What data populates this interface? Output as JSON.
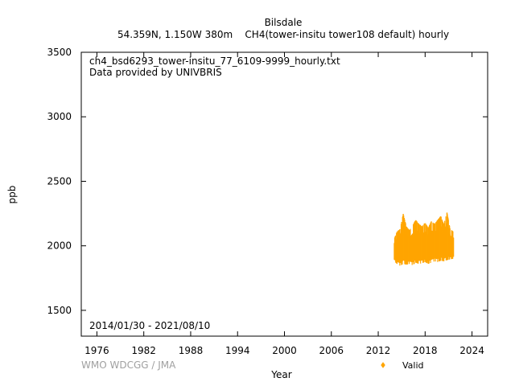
{
  "header": {
    "site_name": "Bilsdale",
    "subtitle": "54.359N, 1.150W 380m    CH4(tower-insitu tower108 default) hourly"
  },
  "plot_notes": {
    "filename": "ch4_bsd6293_tower-insitu_77_6109-9999_hourly.txt",
    "provider": "Data provided by UNIVBRIS",
    "date_range": "2014/01/30 - 2021/08/10"
  },
  "footer": {
    "credit": "WMO WDCGG / JMA"
  },
  "chart_data": {
    "type": "scatter",
    "xlabel": "Year",
    "ylabel": "ppb",
    "xlim": [
      1974.0,
      2026.0
    ],
    "ylim": [
      1300,
      3500
    ],
    "x_ticks": [
      1976,
      1982,
      1988,
      1994,
      2000,
      2006,
      2012,
      2018,
      2024
    ],
    "y_ticks": [
      1500,
      2000,
      2500,
      3000,
      3500
    ],
    "grid": false,
    "legend_position": "bottom-right",
    "series": [
      {
        "name": "Valid",
        "color": "#ffa500",
        "x_range": [
          2014.08,
          2021.61
        ],
        "envelope": [
          {
            "x": 2014.08,
            "low": 1880,
            "high": 2060
          },
          {
            "x": 2014.4,
            "low": 1860,
            "high": 2110
          },
          {
            "x": 2014.8,
            "low": 1845,
            "high": 2130
          },
          {
            "x": 2015.2,
            "low": 1860,
            "high": 2250
          },
          {
            "x": 2015.6,
            "low": 1855,
            "high": 2150
          },
          {
            "x": 2016.0,
            "low": 1860,
            "high": 2120
          },
          {
            "x": 2016.4,
            "low": 1850,
            "high": 2160
          },
          {
            "x": 2016.8,
            "low": 1870,
            "high": 2200
          },
          {
            "x": 2017.2,
            "low": 1860,
            "high": 2170
          },
          {
            "x": 2017.6,
            "low": 1865,
            "high": 2150
          },
          {
            "x": 2018.0,
            "low": 1875,
            "high": 2180
          },
          {
            "x": 2018.4,
            "low": 1860,
            "high": 2140
          },
          {
            "x": 2018.8,
            "low": 1870,
            "high": 2190
          },
          {
            "x": 2019.2,
            "low": 1880,
            "high": 2170
          },
          {
            "x": 2019.6,
            "low": 1875,
            "high": 2200
          },
          {
            "x": 2020.0,
            "low": 1885,
            "high": 2230
          },
          {
            "x": 2020.4,
            "low": 1880,
            "high": 2170
          },
          {
            "x": 2020.8,
            "low": 1890,
            "high": 2260
          },
          {
            "x": 2021.2,
            "low": 1895,
            "high": 2130
          },
          {
            "x": 2021.61,
            "low": 1900,
            "high": 2110
          }
        ]
      }
    ]
  }
}
